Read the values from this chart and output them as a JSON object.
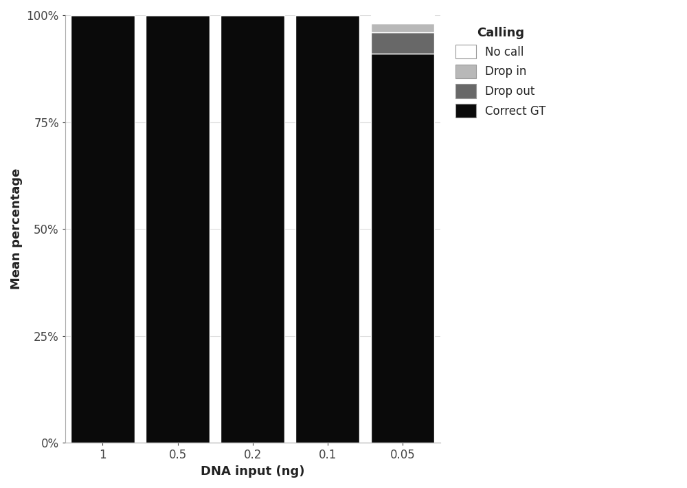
{
  "categories": [
    "1",
    "0.5",
    "0.2",
    "0.1",
    "0.05"
  ],
  "xlabel": "DNA input (ng)",
  "ylabel": "Mean percentage",
  "legend_title": "Calling",
  "legend_labels": [
    "No call",
    "Drop in",
    "Drop out",
    "Correct GT"
  ],
  "colors_no_call": "#ffffff",
  "colors_drop_in": "#b8b8b8",
  "colors_drop_out": "#686868",
  "colors_correct_gt": "#0a0a0a",
  "data": {
    "Correct GT": [
      100.0,
      100.0,
      100.0,
      100.0,
      91.0
    ],
    "Drop out": [
      0.0,
      0.0,
      0.0,
      0.0,
      5.0
    ],
    "Drop in": [
      0.0,
      0.0,
      0.0,
      0.0,
      2.0
    ],
    "No call": [
      0.0,
      0.0,
      0.0,
      0.0,
      2.0
    ]
  },
  "yticks": [
    0,
    25,
    50,
    75,
    100
  ],
  "ytick_labels": [
    "0%",
    "25%",
    "50%",
    "75%",
    "100%"
  ],
  "plot_bg_color": "#ffffff",
  "fig_bg_color": "#ffffff",
  "bar_edge_color": "#ffffff",
  "bar_width": 0.85,
  "figsize": [
    10.0,
    7.1
  ],
  "dpi": 100
}
